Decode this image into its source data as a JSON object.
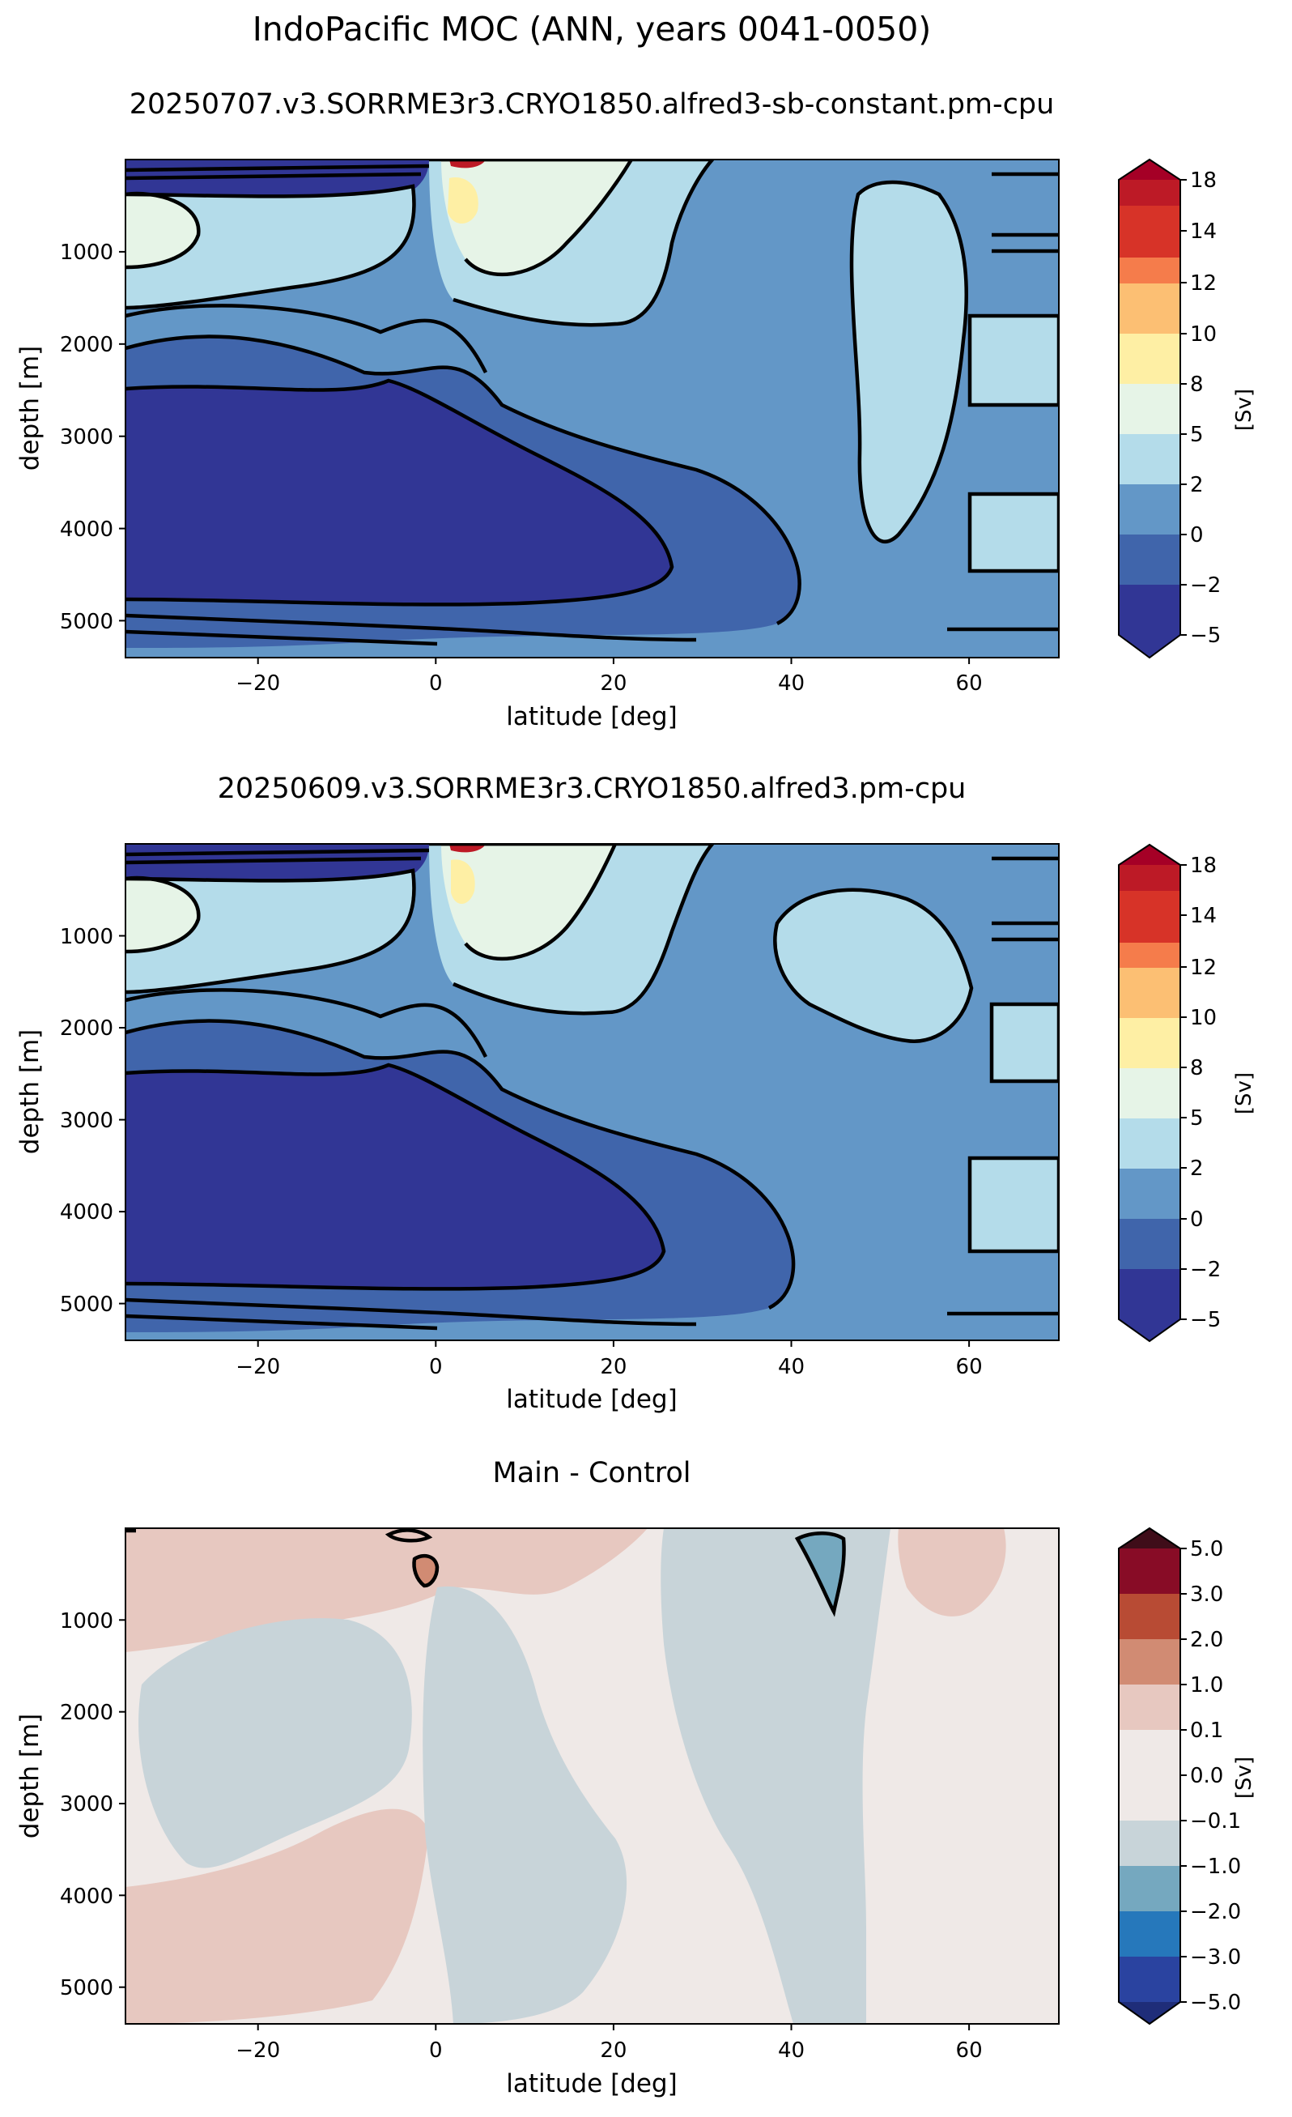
{
  "figure": {
    "title": "IndoPacific MOC (ANN, years 0041-0050)"
  },
  "colors": {
    "main": [
      "#313695",
      "#4065ab",
      "#6397c7",
      "#b4dcea",
      "#e6f4e7",
      "#feefa4",
      "#fcbf73",
      "#f57c4b",
      "#d73328",
      "#bd1a26",
      "#a50026"
    ],
    "diff": [
      "#1f2d79",
      "#2a43a0",
      "#2678bb",
      "#75a8bf",
      "#c8d4d9",
      "#efe9e7",
      "#e7c8c0",
      "#d18b73",
      "#b84b34",
      "#880c26",
      "#3f0d19"
    ]
  },
  "chart_data": [
    {
      "type": "contourf",
      "title": "20250707.v3.SORRME3r3.CRYO1850.alfred3-sb-constant.pm-cpu",
      "xlabel": "latitude [deg]",
      "ylabel": "depth [m]",
      "xlim": [
        -35,
        70
      ],
      "ylim": [
        5400,
        0
      ],
      "xticks": [
        -20,
        0,
        20,
        40,
        60
      ],
      "yticks": [
        1000,
        2000,
        3000,
        4000,
        5000
      ],
      "colorbar": {
        "label": "[Sv]",
        "levels": [
          -5,
          -2,
          0,
          2,
          5,
          8,
          10,
          12,
          14,
          18
        ],
        "extend": "both"
      }
    },
    {
      "type": "contourf",
      "title": "20250609.v3.SORRME3r3.CRYO1850.alfred3.pm-cpu",
      "xlabel": "latitude [deg]",
      "ylabel": "depth [m]",
      "xlim": [
        -35,
        70
      ],
      "ylim": [
        5400,
        0
      ],
      "xticks": [
        -20,
        0,
        20,
        40,
        60
      ],
      "yticks": [
        1000,
        2000,
        3000,
        4000,
        5000
      ],
      "colorbar": {
        "label": "[Sv]",
        "levels": [
          -5,
          -2,
          0,
          2,
          5,
          8,
          10,
          12,
          14,
          18
        ],
        "extend": "both"
      }
    },
    {
      "type": "contourf",
      "title": "Main - Control",
      "xlabel": "latitude [deg]",
      "ylabel": "depth [m]",
      "xlim": [
        -35,
        70
      ],
      "ylim": [
        5400,
        0
      ],
      "xticks": [
        -20,
        0,
        20,
        40,
        60
      ],
      "yticks": [
        1000,
        2000,
        3000,
        4000,
        5000
      ],
      "colorbar": {
        "label": "[Sv]",
        "levels": [
          "-5.0",
          "-3.0",
          "-2.0",
          "-1.0",
          "-0.1",
          "0.0",
          "0.1",
          "1.0",
          "2.0",
          "3.0",
          "5.0"
        ],
        "extend": "both"
      }
    }
  ]
}
